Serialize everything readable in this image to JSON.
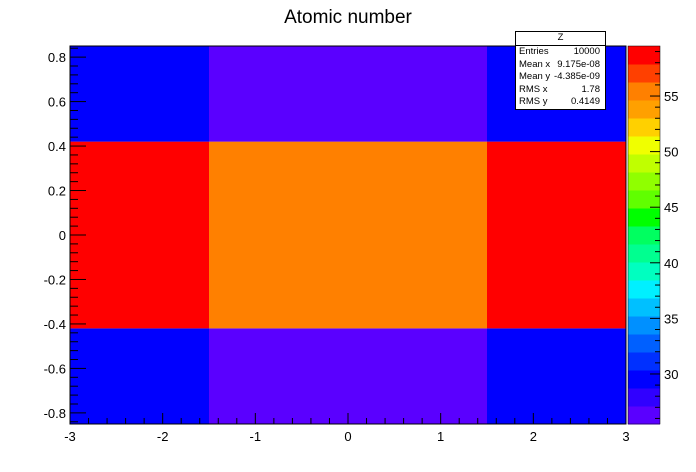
{
  "chart_data": {
    "type": "heatmap",
    "title": "Atomic number",
    "xlabel": "",
    "ylabel": "",
    "xlim": [
      -3,
      3
    ],
    "ylim": [
      -0.85,
      0.85
    ],
    "x_ticks": [
      "-3",
      "-2",
      "-1",
      "0",
      "1",
      "2",
      "3"
    ],
    "y_ticks": [
      "-0.8",
      "-0.6",
      "-0.4",
      "-0.2",
      "0",
      "0.2",
      "0.4",
      "0.6",
      "0.8"
    ],
    "x_edges": [
      -3,
      -1.5,
      1.5,
      3
    ],
    "y_edges": [
      -0.85,
      -0.42,
      0.42,
      0.85
    ],
    "z": [
      [
        29,
        26,
        29
      ],
      [
        58,
        56,
        58
      ],
      [
        29,
        26,
        29
      ]
    ],
    "colorbar": {
      "range": [
        25.5,
        59.5
      ],
      "ticks": [
        "30",
        "35",
        "40",
        "45",
        "50",
        "55"
      ]
    },
    "palette": [
      "#5a00ff",
      "#3000ff",
      "#0000ff",
      "#0030ff",
      "#0060ff",
      "#0090ff",
      "#00c0ff",
      "#00f0ff",
      "#00ffc0",
      "#00ff90",
      "#00ff60",
      "#00ff00",
      "#60ff00",
      "#90ff00",
      "#c0ff00",
      "#f0ff00",
      "#ffd000",
      "#ffa000",
      "#ff8000",
      "#ff4000",
      "#ff0000"
    ],
    "grid": false,
    "legend": "top-right"
  },
  "stats": {
    "title": "Z",
    "rows": [
      {
        "label": "Entries",
        "value": "10000"
      },
      {
        "label": "Mean x",
        "value": "9.175e-08"
      },
      {
        "label": "Mean y",
        "value": "-4.385e-09"
      },
      {
        "label": "RMS x",
        "value": "1.78"
      },
      {
        "label": "RMS y",
        "value": "0.4149"
      }
    ]
  }
}
